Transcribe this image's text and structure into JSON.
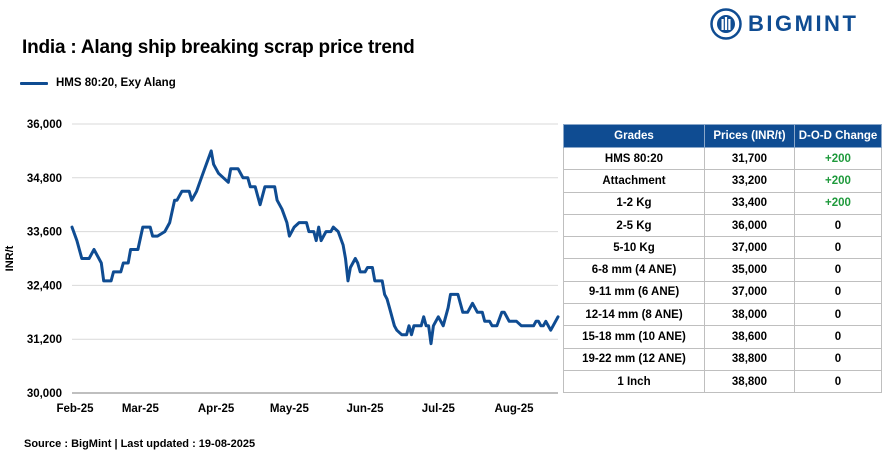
{
  "header": {
    "title": "India : Alang ship breaking scrap price trend",
    "brand": "BIGMINT"
  },
  "colors": {
    "brand": "#0f4c92",
    "positive": "#1f9a3c"
  },
  "source_text": "Source : BigMint | Last updated : 19-08-2025",
  "chart_data": {
    "type": "line",
    "title": "India : Alang ship breaking scrap price trend",
    "ylabel": "INR/t",
    "xlabel": "",
    "ylim": [
      30000,
      36000
    ],
    "yticks": [
      30000,
      31200,
      32400,
      33600,
      34800,
      36000
    ],
    "ytick_labels": [
      "30,000",
      "31,200",
      "32,400",
      "33,600",
      "34,800",
      "36,000"
    ],
    "xticks": [
      "Feb-25",
      "Mar-25",
      "Apr-25",
      "May-25",
      "Jun-25",
      "Jul-25",
      "Aug-25"
    ],
    "x_start": "2025-02-01",
    "x_end": "2025-08-19",
    "legend_position": "top-left",
    "series": [
      {
        "name": "HMS 80:20, Exy Alang",
        "color": "#0f4c92",
        "points": [
          [
            "2025-02-01",
            33700
          ],
          [
            "2025-02-03",
            33400
          ],
          [
            "2025-02-05",
            33000
          ],
          [
            "2025-02-08",
            33000
          ],
          [
            "2025-02-10",
            33200
          ],
          [
            "2025-02-12",
            33000
          ],
          [
            "2025-02-13",
            32900
          ],
          [
            "2025-02-14",
            32500
          ],
          [
            "2025-02-17",
            32500
          ],
          [
            "2025-02-18",
            32700
          ],
          [
            "2025-02-21",
            32700
          ],
          [
            "2025-02-22",
            32900
          ],
          [
            "2025-02-24",
            32900
          ],
          [
            "2025-02-25",
            33200
          ],
          [
            "2025-02-28",
            33200
          ],
          [
            "2025-03-02",
            33700
          ],
          [
            "2025-03-05",
            33700
          ],
          [
            "2025-03-06",
            33500
          ],
          [
            "2025-03-08",
            33500
          ],
          [
            "2025-03-11",
            33600
          ],
          [
            "2025-03-13",
            33800
          ],
          [
            "2025-03-15",
            34300
          ],
          [
            "2025-03-16",
            34300
          ],
          [
            "2025-03-18",
            34500
          ],
          [
            "2025-03-21",
            34500
          ],
          [
            "2025-03-22",
            34300
          ],
          [
            "2025-03-24",
            34500
          ],
          [
            "2025-03-26",
            34800
          ],
          [
            "2025-03-28",
            35100
          ],
          [
            "2025-03-30",
            35400
          ],
          [
            "2025-03-31",
            35100
          ],
          [
            "2025-04-02",
            34900
          ],
          [
            "2025-04-04",
            34800
          ],
          [
            "2025-04-06",
            34700
          ],
          [
            "2025-04-07",
            35000
          ],
          [
            "2025-04-10",
            35000
          ],
          [
            "2025-04-12",
            34800
          ],
          [
            "2025-04-14",
            34800
          ],
          [
            "2025-04-15",
            34600
          ],
          [
            "2025-04-17",
            34600
          ],
          [
            "2025-04-18",
            34400
          ],
          [
            "2025-04-19",
            34200
          ],
          [
            "2025-04-21",
            34600
          ],
          [
            "2025-04-23",
            34600
          ],
          [
            "2025-04-25",
            34600
          ],
          [
            "2025-04-26",
            34300
          ],
          [
            "2025-04-28",
            34100
          ],
          [
            "2025-04-30",
            33800
          ],
          [
            "2025-05-01",
            33500
          ],
          [
            "2025-05-03",
            33700
          ],
          [
            "2025-05-05",
            33800
          ],
          [
            "2025-05-08",
            33800
          ],
          [
            "2025-05-09",
            33600
          ],
          [
            "2025-05-11",
            33600
          ],
          [
            "2025-05-12",
            33400
          ],
          [
            "2025-05-13",
            33700
          ],
          [
            "2025-05-14",
            33400
          ],
          [
            "2025-05-16",
            33600
          ],
          [
            "2025-05-18",
            33600
          ],
          [
            "2025-05-19",
            33700
          ],
          [
            "2025-05-21",
            33600
          ],
          [
            "2025-05-23",
            33300
          ],
          [
            "2025-05-24",
            33000
          ],
          [
            "2025-05-25",
            32500
          ],
          [
            "2025-05-26",
            32800
          ],
          [
            "2025-05-28",
            33000
          ],
          [
            "2025-05-29",
            32900
          ],
          [
            "2025-05-30",
            32700
          ],
          [
            "2025-06-01",
            32700
          ],
          [
            "2025-06-02",
            32800
          ],
          [
            "2025-06-04",
            32800
          ],
          [
            "2025-06-05",
            32500
          ],
          [
            "2025-06-08",
            32500
          ],
          [
            "2025-06-09",
            32200
          ],
          [
            "2025-06-10",
            32100
          ],
          [
            "2025-06-11",
            31900
          ],
          [
            "2025-06-13",
            31500
          ],
          [
            "2025-06-14",
            31400
          ],
          [
            "2025-06-16",
            31300
          ],
          [
            "2025-06-18",
            31300
          ],
          [
            "2025-06-19",
            31500
          ],
          [
            "2025-06-20",
            31300
          ],
          [
            "2025-06-21",
            31500
          ],
          [
            "2025-06-22",
            31500
          ],
          [
            "2025-06-24",
            31500
          ],
          [
            "2025-06-25",
            31700
          ],
          [
            "2025-06-26",
            31500
          ],
          [
            "2025-06-27",
            31500
          ],
          [
            "2025-06-28",
            31100
          ],
          [
            "2025-06-29",
            31500
          ],
          [
            "2025-07-01",
            31700
          ],
          [
            "2025-07-02",
            31600
          ],
          [
            "2025-07-03",
            31500
          ],
          [
            "2025-07-05",
            31900
          ],
          [
            "2025-07-06",
            32200
          ],
          [
            "2025-07-09",
            32200
          ],
          [
            "2025-07-11",
            31800
          ],
          [
            "2025-07-13",
            31800
          ],
          [
            "2025-07-15",
            32000
          ],
          [
            "2025-07-17",
            31800
          ],
          [
            "2025-07-19",
            31800
          ],
          [
            "2025-07-20",
            31600
          ],
          [
            "2025-07-22",
            31600
          ],
          [
            "2025-07-23",
            31500
          ],
          [
            "2025-07-25",
            31500
          ],
          [
            "2025-07-27",
            31800
          ],
          [
            "2025-07-28",
            31800
          ],
          [
            "2025-07-30",
            31600
          ],
          [
            "2025-08-02",
            31600
          ],
          [
            "2025-08-04",
            31500
          ],
          [
            "2025-08-06",
            31500
          ],
          [
            "2025-08-09",
            31500
          ],
          [
            "2025-08-10",
            31600
          ],
          [
            "2025-08-11",
            31600
          ],
          [
            "2025-08-12",
            31500
          ],
          [
            "2025-08-13",
            31500
          ],
          [
            "2025-08-14",
            31600
          ],
          [
            "2025-08-16",
            31400
          ],
          [
            "2025-08-17",
            31500
          ],
          [
            "2025-08-19",
            31700
          ]
        ]
      }
    ]
  },
  "price_table": {
    "headers": [
      "Grades",
      "Prices (INR/t)",
      "D-O-D Change"
    ],
    "rows": [
      [
        "HMS 80:20",
        "31,700",
        "+200"
      ],
      [
        "Attachment",
        "33,200",
        "+200"
      ],
      [
        "1-2 Kg",
        "33,400",
        "+200"
      ],
      [
        "2-5 Kg",
        "36,000",
        "0"
      ],
      [
        "5-10 Kg",
        "37,000",
        "0"
      ],
      [
        "6-8 mm (4 ANE)",
        "35,000",
        "0"
      ],
      [
        "9-11 mm (6 ANE)",
        "37,000",
        "0"
      ],
      [
        "12-14 mm (8 ANE)",
        "38,000",
        "0"
      ],
      [
        "15-18 mm (10 ANE)",
        "38,600",
        "0"
      ],
      [
        "19-22 mm (12 ANE)",
        "38,800",
        "0"
      ],
      [
        "1 Inch",
        "38,800",
        "0"
      ]
    ]
  }
}
